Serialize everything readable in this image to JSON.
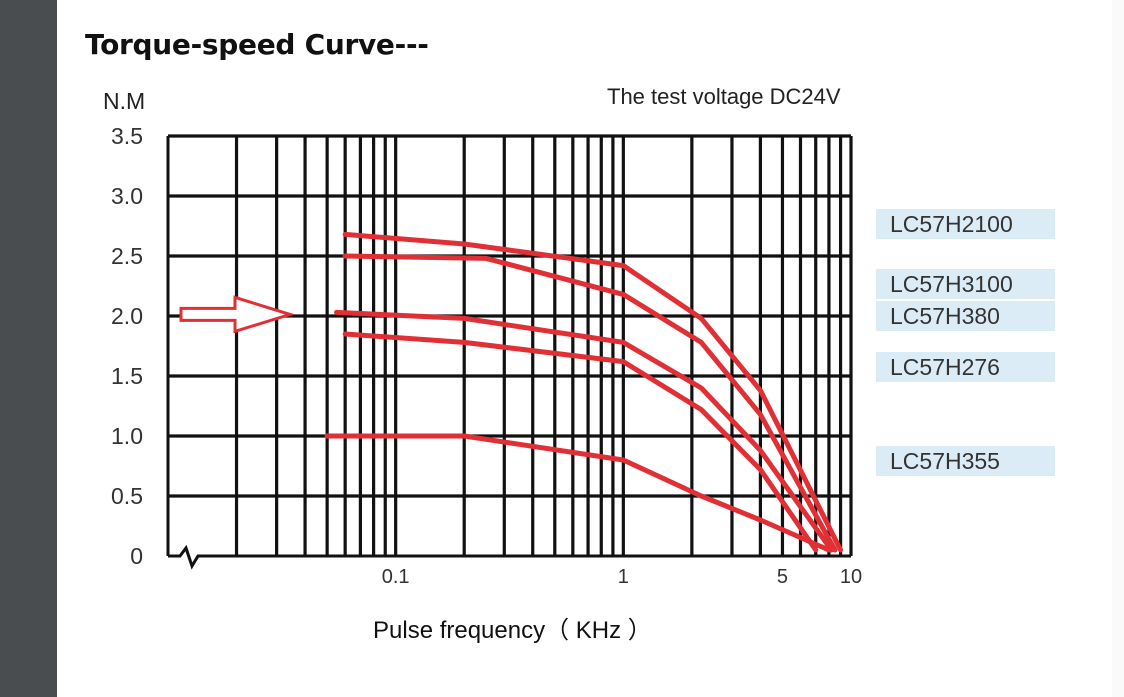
{
  "title": "Torque-speed Curve---",
  "subtitle": "The test voltage DC24V",
  "chart_data": {
    "type": "line",
    "ylabel": "N.M",
    "xlabel": "Pulse frequency（ KHz ）",
    "x_scale": "log",
    "xlim": [
      0.01,
      10
    ],
    "ylim": [
      0,
      3.5
    ],
    "grid": true,
    "y_ticks": [
      "0",
      "0.5",
      "1.0",
      "1.5",
      "2.0",
      "2.5",
      "3.0",
      "3.5"
    ],
    "x_ticks": [
      {
        "value": 0.1,
        "label": "0.1"
      },
      {
        "value": 1,
        "label": "1"
      },
      {
        "value": 5,
        "label": "5"
      },
      {
        "value": 10,
        "label": "10"
      }
    ],
    "series": [
      {
        "name": "LC57H2100",
        "x": [
          0.06,
          0.2,
          1,
          2.2,
          4,
          9
        ],
        "y": [
          2.68,
          2.6,
          2.42,
          1.98,
          1.38,
          0.05
        ]
      },
      {
        "name": "LC57H3100",
        "x": [
          0.06,
          0.25,
          1,
          2.2,
          4,
          8.5
        ],
        "y": [
          2.5,
          2.48,
          2.18,
          1.78,
          1.18,
          0.05
        ]
      },
      {
        "name": "LC57H380",
        "x": [
          0.055,
          0.2,
          1,
          2.2,
          4,
          8.2
        ],
        "y": [
          2.03,
          1.98,
          1.78,
          1.4,
          0.88,
          0.05
        ]
      },
      {
        "name": "LC57H276",
        "x": [
          0.06,
          0.2,
          1,
          2.2,
          4,
          7
        ],
        "y": [
          1.85,
          1.78,
          1.62,
          1.22,
          0.72,
          0.05
        ]
      },
      {
        "name": "LC57H355",
        "x": [
          0.05,
          0.2,
          1,
          2.2,
          4,
          8
        ],
        "y": [
          1.0,
          1.0,
          0.8,
          0.5,
          0.3,
          0.05
        ]
      }
    ],
    "legend_position": "right",
    "line_color": "#e03035",
    "arrow_color": "#e03035",
    "arrow_target_y": 2.03
  }
}
